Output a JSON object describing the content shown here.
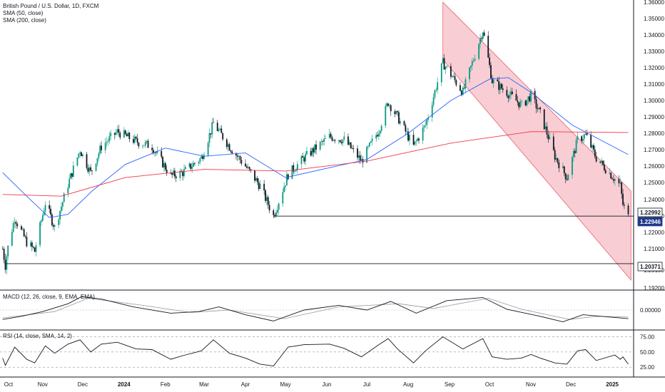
{
  "header": {
    "title": "British Pound / U.S. Dollar, 1D, FXCM",
    "sma50_label": "SMA (50, close)",
    "sma200_label": "SMA (200, close)"
  },
  "indicators": {
    "macd_label": "MACD (12, 26, close, 9, EMA, EMA)",
    "rsi_label": "RSI (14, close, SMA, 14, 2)"
  },
  "colors": {
    "up": "#089981",
    "down": "#131722",
    "sma50": "#2962ff",
    "sma200": "#f23645",
    "channel_fill": "#f7c6cc",
    "channel_edge": "#e8606f",
    "grid": "#f0f3fa",
    "axis_text": "#131722"
  },
  "chart_data": [
    {
      "type": "candlestick",
      "title": "British Pound / U.S. Dollar, 1D, FXCM",
      "x_tick_labels": [
        "Oct",
        "Nov",
        "Dec",
        "2024",
        "Feb",
        "Mar",
        "Apr",
        "May",
        "Jun",
        "Jul",
        "Aug",
        "Sep",
        "Oct",
        "Nov",
        "Dec",
        "2025"
      ],
      "y_tick_labels": [
        "1.36000",
        "1.35000",
        "1.34000",
        "1.33000",
        "1.32000",
        "1.31000",
        "1.30000",
        "1.29000",
        "1.28000",
        "1.27000",
        "1.26000",
        "1.25000",
        "1.24000",
        "1.23000",
        "1.22000",
        "1.21000",
        "1.20100",
        "1.19200"
      ],
      "ylim": [
        1.192,
        1.36
      ],
      "price_labels": [
        "1.22992",
        "1.22946",
        "1.20371"
      ],
      "close_path": [
        {
          "date": "2023-10-02",
          "close": 1.21
        },
        {
          "date": "2023-10-04",
          "close": 1.2037
        },
        {
          "date": "2023-10-11",
          "close": 1.229
        },
        {
          "date": "2023-10-20",
          "close": 1.214
        },
        {
          "date": "2023-10-26",
          "close": 1.209
        },
        {
          "date": "2023-11-03",
          "close": 1.238
        },
        {
          "date": "2023-11-10",
          "close": 1.223
        },
        {
          "date": "2023-11-20",
          "close": 1.249
        },
        {
          "date": "2023-11-29",
          "close": 1.27
        },
        {
          "date": "2023-12-07",
          "close": 1.256
        },
        {
          "date": "2023-12-15",
          "close": 1.272
        },
        {
          "date": "2023-12-27",
          "close": 1.281
        },
        {
          "date": "2024-01-10",
          "close": 1.275
        },
        {
          "date": "2024-01-22",
          "close": 1.272
        },
        {
          "date": "2024-02-05",
          "close": 1.254
        },
        {
          "date": "2024-02-14",
          "close": 1.256
        },
        {
          "date": "2024-02-28",
          "close": 1.265
        },
        {
          "date": "2024-03-08",
          "close": 1.286
        },
        {
          "date": "2024-03-20",
          "close": 1.272
        },
        {
          "date": "2024-04-01",
          "close": 1.26
        },
        {
          "date": "2024-04-12",
          "close": 1.248
        },
        {
          "date": "2024-04-22",
          "close": 1.23
        },
        {
          "date": "2024-05-03",
          "close": 1.255
        },
        {
          "date": "2024-05-15",
          "close": 1.265
        },
        {
          "date": "2024-06-03",
          "close": 1.278
        },
        {
          "date": "2024-06-14",
          "close": 1.276
        },
        {
          "date": "2024-06-27",
          "close": 1.263
        },
        {
          "date": "2024-07-10",
          "close": 1.282
        },
        {
          "date": "2024-07-17",
          "close": 1.299
        },
        {
          "date": "2024-07-24",
          "close": 1.29
        },
        {
          "date": "2024-08-05",
          "close": 1.272
        },
        {
          "date": "2024-08-14",
          "close": 1.285
        },
        {
          "date": "2024-08-27",
          "close": 1.323
        },
        {
          "date": "2024-09-11",
          "close": 1.305
        },
        {
          "date": "2024-09-26",
          "close": 1.343
        },
        {
          "date": "2024-10-03",
          "close": 1.312
        },
        {
          "date": "2024-10-14",
          "close": 1.305
        },
        {
          "date": "2024-10-25",
          "close": 1.297
        },
        {
          "date": "2024-11-01",
          "close": 1.303
        },
        {
          "date": "2024-11-08",
          "close": 1.292
        },
        {
          "date": "2024-11-19",
          "close": 1.266
        },
        {
          "date": "2024-11-28",
          "close": 1.253
        },
        {
          "date": "2024-12-06",
          "close": 1.276
        },
        {
          "date": "2024-12-12",
          "close": 1.279
        },
        {
          "date": "2024-12-20",
          "close": 1.265
        },
        {
          "date": "2025-01-03",
          "close": 1.252
        },
        {
          "date": "2025-01-07",
          "close": 1.248
        },
        {
          "date": "2025-01-09",
          "close": 1.237
        },
        {
          "date": "2025-01-13",
          "close": 1.2295
        }
      ],
      "series": [
        {
          "name": "SMA (50, close)",
          "points": [
            {
              "date": "2023-10-02",
              "value": 1.256
            },
            {
              "date": "2023-10-20",
              "value": 1.242
            },
            {
              "date": "2023-11-06",
              "value": 1.229
            },
            {
              "date": "2023-11-20",
              "value": 1.231
            },
            {
              "date": "2023-12-08",
              "value": 1.245
            },
            {
              "date": "2024-01-02",
              "value": 1.261
            },
            {
              "date": "2024-02-01",
              "value": 1.271
            },
            {
              "date": "2024-03-01",
              "value": 1.266
            },
            {
              "date": "2024-04-01",
              "value": 1.268
            },
            {
              "date": "2024-05-01",
              "value": 1.253
            },
            {
              "date": "2024-06-03",
              "value": 1.259
            },
            {
              "date": "2024-07-01",
              "value": 1.264
            },
            {
              "date": "2024-08-01",
              "value": 1.28
            },
            {
              "date": "2024-09-02",
              "value": 1.3
            },
            {
              "date": "2024-10-01",
              "value": 1.313
            },
            {
              "date": "2024-10-15",
              "value": 1.314
            },
            {
              "date": "2024-11-01",
              "value": 1.305
            },
            {
              "date": "2024-12-02",
              "value": 1.285
            },
            {
              "date": "2025-01-13",
              "value": 1.267
            }
          ]
        },
        {
          "name": "SMA (200, close)",
          "points": [
            {
              "date": "2023-10-02",
              "value": 1.243
            },
            {
              "date": "2023-11-15",
              "value": 1.242
            },
            {
              "date": "2024-01-02",
              "value": 1.253
            },
            {
              "date": "2024-03-01",
              "value": 1.258
            },
            {
              "date": "2024-05-01",
              "value": 1.257
            },
            {
              "date": "2024-07-01",
              "value": 1.263
            },
            {
              "date": "2024-09-02",
              "value": 1.274
            },
            {
              "date": "2024-11-01",
              "value": 1.281
            },
            {
              "date": "2025-01-13",
              "value": 1.2805
            }
          ]
        }
      ],
      "horizontal_lines": [
        {
          "value": 1.22992,
          "from": "2024-04-22",
          "to": "2025-01-13"
        },
        {
          "value": 1.20371,
          "from": "2023-10-04",
          "to": "2025-01-13"
        }
      ],
      "channel": {
        "upper": [
          {
            "date": "2024-08-27",
            "value": 1.36
          },
          {
            "date": "2025-01-15",
            "value": 1.245
          }
        ],
        "lower": [
          {
            "date": "2024-08-27",
            "value": 1.325
          },
          {
            "date": "2025-01-15",
            "value": 1.196
          }
        ]
      }
    },
    {
      "type": "line",
      "title": "MACD (12, 26, close, 9, EMA, EMA)",
      "y_tick_labels": [
        "0.00000"
      ],
      "series": [
        {
          "name": "MACD",
          "points": [
            {
              "date": "2023-10-02",
              "value": -0.6
            },
            {
              "date": "2023-10-16",
              "value": -0.4
            },
            {
              "date": "2023-11-01",
              "value": -0.1
            },
            {
              "date": "2023-11-20",
              "value": 0.4
            },
            {
              "date": "2023-11-30",
              "value": 0.85
            },
            {
              "date": "2023-12-15",
              "value": 0.7
            },
            {
              "date": "2024-01-08",
              "value": 0.2
            },
            {
              "date": "2024-02-05",
              "value": -0.2
            },
            {
              "date": "2024-02-26",
              "value": -0.1
            },
            {
              "date": "2024-03-12",
              "value": 0.2
            },
            {
              "date": "2024-04-01",
              "value": -0.3
            },
            {
              "date": "2024-04-22",
              "value": -0.7
            },
            {
              "date": "2024-05-15",
              "value": 0.0
            },
            {
              "date": "2024-06-10",
              "value": 0.3
            },
            {
              "date": "2024-07-01",
              "value": 0.0
            },
            {
              "date": "2024-07-19",
              "value": 0.55
            },
            {
              "date": "2024-08-07",
              "value": -0.2
            },
            {
              "date": "2024-08-30",
              "value": 0.6
            },
            {
              "date": "2024-09-26",
              "value": 0.8
            },
            {
              "date": "2024-10-14",
              "value": 0.05
            },
            {
              "date": "2024-11-08",
              "value": -0.4
            },
            {
              "date": "2024-11-25",
              "value": -0.75
            },
            {
              "date": "2024-12-10",
              "value": -0.3
            },
            {
              "date": "2025-01-13",
              "value": -0.55
            }
          ]
        },
        {
          "name": "Signal",
          "points": [
            {
              "date": "2023-10-02",
              "value": -0.5
            },
            {
              "date": "2023-11-10",
              "value": -0.1
            },
            {
              "date": "2023-12-05",
              "value": 0.75
            },
            {
              "date": "2024-01-15",
              "value": 0.3
            },
            {
              "date": "2024-02-20",
              "value": -0.15
            },
            {
              "date": "2024-03-20",
              "value": 0.0
            },
            {
              "date": "2024-04-30",
              "value": -0.55
            },
            {
              "date": "2024-06-10",
              "value": 0.2
            },
            {
              "date": "2024-07-25",
              "value": 0.4
            },
            {
              "date": "2024-08-20",
              "value": 0.1
            },
            {
              "date": "2024-09-30",
              "value": 0.75
            },
            {
              "date": "2024-10-25",
              "value": 0.05
            },
            {
              "date": "2024-11-30",
              "value": -0.6
            },
            {
              "date": "2024-12-20",
              "value": -0.4
            },
            {
              "date": "2025-01-13",
              "value": -0.45
            }
          ]
        }
      ]
    },
    {
      "type": "line",
      "title": "RSI (14, close, SMA, 14, 2)",
      "y_tick_labels": [
        "75.00",
        "50.00",
        "25.00"
      ],
      "ylim": [
        10,
        85
      ],
      "series": [
        {
          "name": "RSI",
          "points": [
            {
              "date": "2023-10-02",
              "value": 40
            },
            {
              "date": "2023-10-04",
              "value": 28
            },
            {
              "date": "2023-10-11",
              "value": 58
            },
            {
              "date": "2023-10-20",
              "value": 38
            },
            {
              "date": "2023-10-26",
              "value": 32
            },
            {
              "date": "2023-11-03",
              "value": 60
            },
            {
              "date": "2023-11-10",
              "value": 48
            },
            {
              "date": "2023-11-20",
              "value": 63
            },
            {
              "date": "2023-11-29",
              "value": 70
            },
            {
              "date": "2023-12-07",
              "value": 50
            },
            {
              "date": "2023-12-15",
              "value": 63
            },
            {
              "date": "2023-12-27",
              "value": 66
            },
            {
              "date": "2024-01-10",
              "value": 55
            },
            {
              "date": "2024-01-22",
              "value": 54
            },
            {
              "date": "2024-02-05",
              "value": 38
            },
            {
              "date": "2024-02-14",
              "value": 44
            },
            {
              "date": "2024-02-28",
              "value": 52
            },
            {
              "date": "2024-03-08",
              "value": 70
            },
            {
              "date": "2024-03-20",
              "value": 48
            },
            {
              "date": "2024-04-01",
              "value": 40
            },
            {
              "date": "2024-04-12",
              "value": 30
            },
            {
              "date": "2024-04-22",
              "value": 27
            },
            {
              "date": "2024-05-03",
              "value": 58
            },
            {
              "date": "2024-05-15",
              "value": 62
            },
            {
              "date": "2024-06-03",
              "value": 63
            },
            {
              "date": "2024-06-14",
              "value": 56
            },
            {
              "date": "2024-06-27",
              "value": 42
            },
            {
              "date": "2024-07-10",
              "value": 62
            },
            {
              "date": "2024-07-17",
              "value": 72
            },
            {
              "date": "2024-07-24",
              "value": 55
            },
            {
              "date": "2024-08-05",
              "value": 32
            },
            {
              "date": "2024-08-14",
              "value": 52
            },
            {
              "date": "2024-08-27",
              "value": 75
            },
            {
              "date": "2024-09-11",
              "value": 55
            },
            {
              "date": "2024-09-26",
              "value": 72
            },
            {
              "date": "2024-10-03",
              "value": 42
            },
            {
              "date": "2024-10-14",
              "value": 38
            },
            {
              "date": "2024-10-25",
              "value": 40
            },
            {
              "date": "2024-11-01",
              "value": 46
            },
            {
              "date": "2024-11-08",
              "value": 40
            },
            {
              "date": "2024-11-19",
              "value": 32
            },
            {
              "date": "2024-11-28",
              "value": 30
            },
            {
              "date": "2024-12-06",
              "value": 52
            },
            {
              "date": "2024-12-12",
              "value": 54
            },
            {
              "date": "2024-12-20",
              "value": 36
            },
            {
              "date": "2025-01-03",
              "value": 45
            },
            {
              "date": "2025-01-07",
              "value": 38
            },
            {
              "date": "2025-01-09",
              "value": 42
            },
            {
              "date": "2025-01-13",
              "value": 30
            }
          ]
        }
      ]
    }
  ]
}
